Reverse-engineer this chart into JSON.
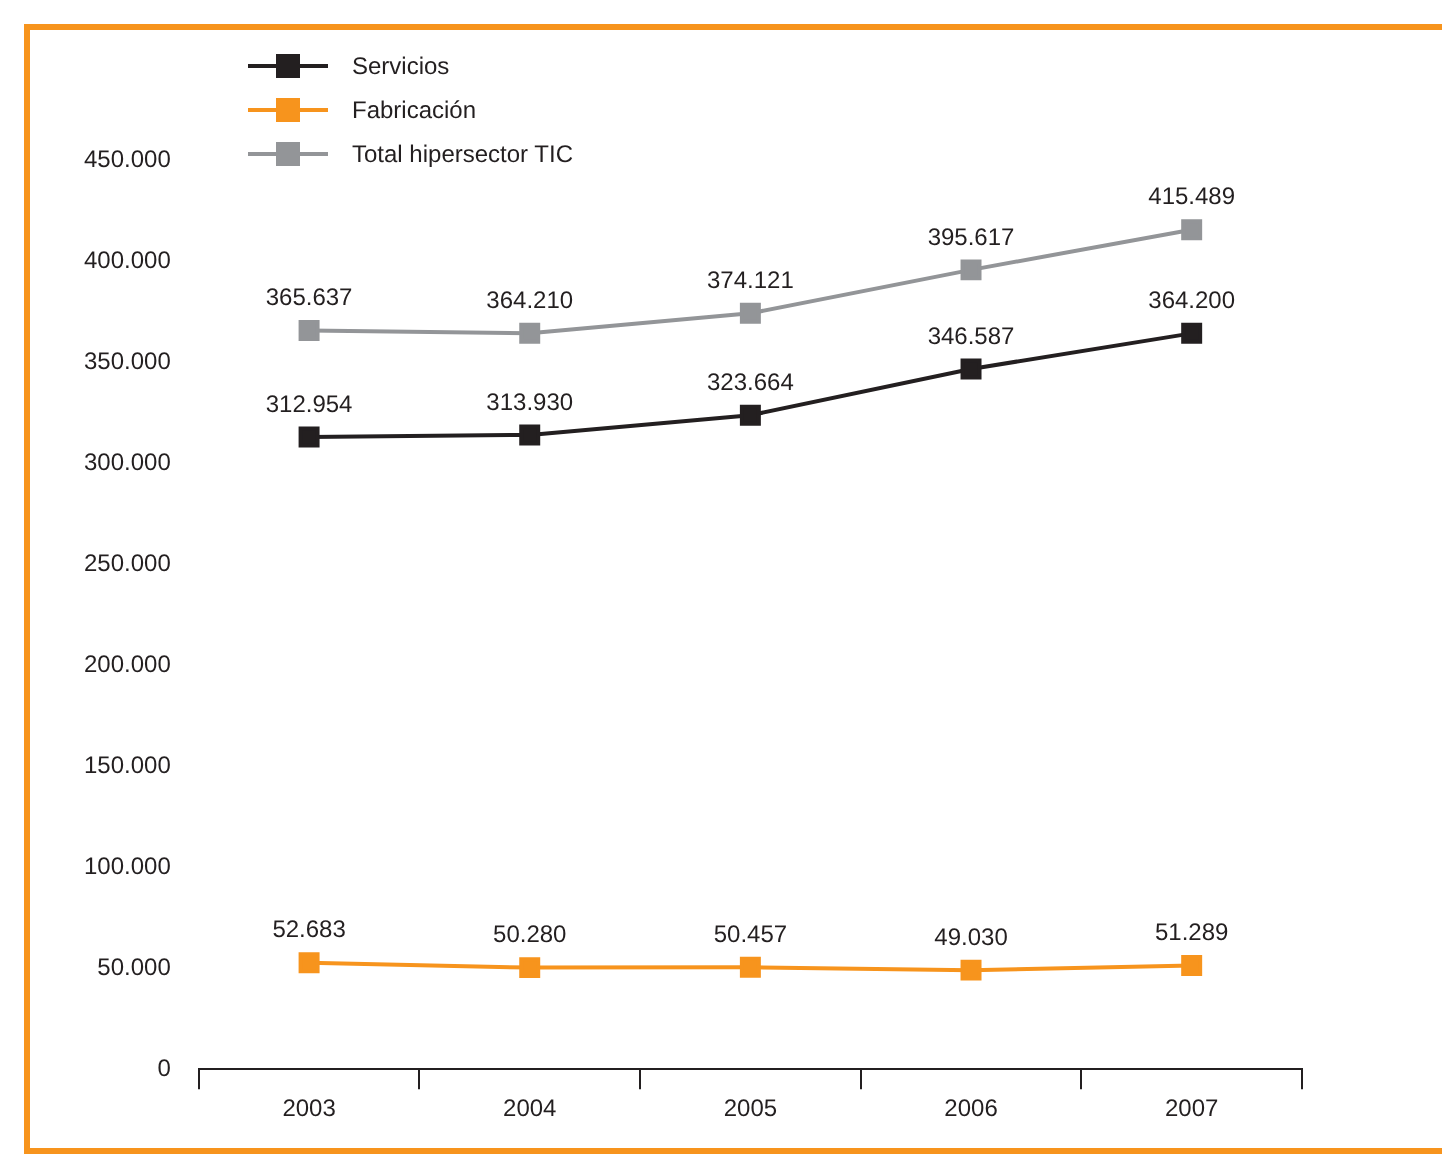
{
  "chart_data": {
    "type": "line",
    "categories": [
      "2003",
      "2004",
      "2005",
      "2006",
      "2007"
    ],
    "series": [
      {
        "name": "Servicios",
        "color": "#231f20",
        "values": [
          312954,
          313930,
          323664,
          346587,
          364200
        ],
        "value_labels": [
          "312.954",
          "313.930",
          "323.664",
          "346.587",
          "364.200"
        ]
      },
      {
        "name": "Fabricación",
        "color": "#f7941d",
        "values": [
          52683,
          50280,
          50457,
          49030,
          51289
        ],
        "value_labels": [
          "52.683",
          "50.280",
          "50.457",
          "49.030",
          "51.289"
        ]
      },
      {
        "name": "Total hipersector TIC",
        "color": "#939598",
        "values": [
          365637,
          364210,
          374121,
          395617,
          415489
        ],
        "value_labels": [
          "365.637",
          "364.210",
          "374.121",
          "395.617",
          "415.489"
        ]
      }
    ],
    "ylim": [
      0,
      450000
    ],
    "yticks": [
      {
        "value": 0,
        "label": "0"
      },
      {
        "value": 50000,
        "label": "50.000"
      },
      {
        "value": 100000,
        "label": "100.000"
      },
      {
        "value": 150000,
        "label": "150.000"
      },
      {
        "value": 200000,
        "label": "200.000"
      },
      {
        "value": 250000,
        "label": "250.000"
      },
      {
        "value": 300000,
        "label": "300.000"
      },
      {
        "value": 350000,
        "label": "350.000"
      },
      {
        "value": 400000,
        "label": "400.000"
      },
      {
        "value": 450000,
        "label": "450.000"
      }
    ],
    "grid": false,
    "legend": "top left",
    "marker": "square",
    "line_style": "solid"
  }
}
